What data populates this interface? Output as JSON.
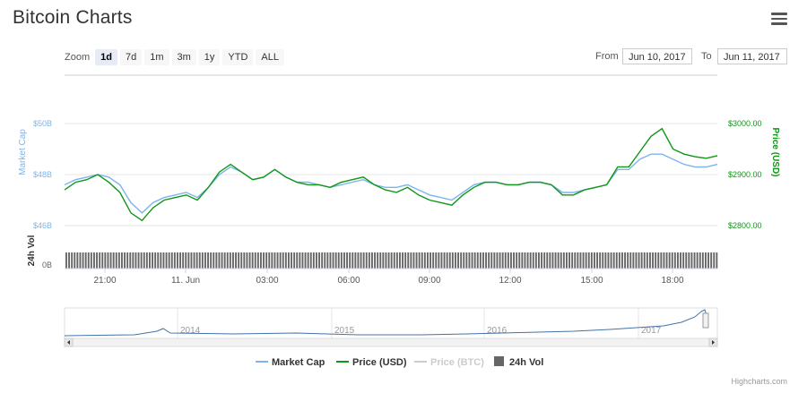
{
  "header": {
    "title": "Bitcoin Charts"
  },
  "zoom": {
    "label": "Zoom",
    "buttons": [
      "1d",
      "7d",
      "1m",
      "3m",
      "1y",
      "YTD",
      "ALL"
    ],
    "active": "1d"
  },
  "range": {
    "from_label": "From",
    "from_value": "Jun 10, 2017",
    "to_label": "To",
    "to_value": "Jun 11, 2017"
  },
  "credit": "Highcharts.com",
  "colors": {
    "market_cap": "#7cb5ec",
    "price_usd": "#109618",
    "price_btc": "#cccccc",
    "volume": "#666666",
    "grid": "#e6e6e6"
  },
  "chart_data": {
    "type": "line",
    "title": "",
    "x_ticks": [
      "21:00",
      "11. Jun",
      "03:00",
      "06:00",
      "09:00",
      "12:00",
      "15:00",
      "18:00"
    ],
    "left_axis": {
      "label": "Market Cap",
      "ticks": [
        "$50B",
        "$48B",
        "$46B"
      ],
      "range": [
        46,
        50
      ]
    },
    "right_axis": {
      "label": "Price (USD)",
      "ticks": [
        "$3000.00",
        "$2900.00",
        "$2800.00"
      ],
      "range": [
        2800,
        3000
      ]
    },
    "volume_axis": {
      "label": "24h Vol",
      "ticks": [
        "0B"
      ]
    },
    "series": [
      {
        "name": "Market Cap",
        "unit": "B USD",
        "values": [
          47.6,
          47.8,
          47.9,
          48.0,
          47.9,
          47.6,
          46.9,
          46.5,
          46.9,
          47.1,
          47.2,
          47.3,
          47.1,
          47.5,
          48.0,
          48.3,
          48.1,
          47.8,
          47.9,
          48.2,
          47.9,
          47.7,
          47.7,
          47.6,
          47.5,
          47.6,
          47.7,
          47.8,
          47.6,
          47.5,
          47.5,
          47.6,
          47.4,
          47.2,
          47.1,
          47.0,
          47.3,
          47.6,
          47.7,
          47.7,
          47.6,
          47.6,
          47.7,
          47.7,
          47.6,
          47.3,
          47.3,
          47.4,
          47.5,
          47.6,
          48.2,
          48.2,
          48.6,
          48.8,
          48.8,
          48.6,
          48.4,
          48.3,
          48.3,
          48.4
        ]
      },
      {
        "name": "Price (USD)",
        "unit": "USD",
        "values": [
          2870,
          2885,
          2890,
          2900,
          2885,
          2865,
          2825,
          2810,
          2835,
          2850,
          2855,
          2860,
          2850,
          2875,
          2905,
          2920,
          2905,
          2890,
          2895,
          2910,
          2895,
          2885,
          2880,
          2880,
          2875,
          2885,
          2890,
          2895,
          2880,
          2870,
          2865,
          2875,
          2860,
          2850,
          2845,
          2840,
          2860,
          2875,
          2885,
          2885,
          2880,
          2880,
          2885,
          2885,
          2880,
          2860,
          2860,
          2870,
          2875,
          2880,
          2915,
          2915,
          2945,
          2975,
          2990,
          2950,
          2940,
          2935,
          2932,
          2937
        ]
      },
      {
        "name": "Price (BTC)",
        "values": []
      },
      {
        "name": "24h Vol",
        "values": []
      }
    ],
    "navigator": {
      "labels": [
        "2014",
        "2015",
        "2016",
        "2017"
      ]
    },
    "legend": {
      "placement": "bottom"
    },
    "grid": true
  }
}
